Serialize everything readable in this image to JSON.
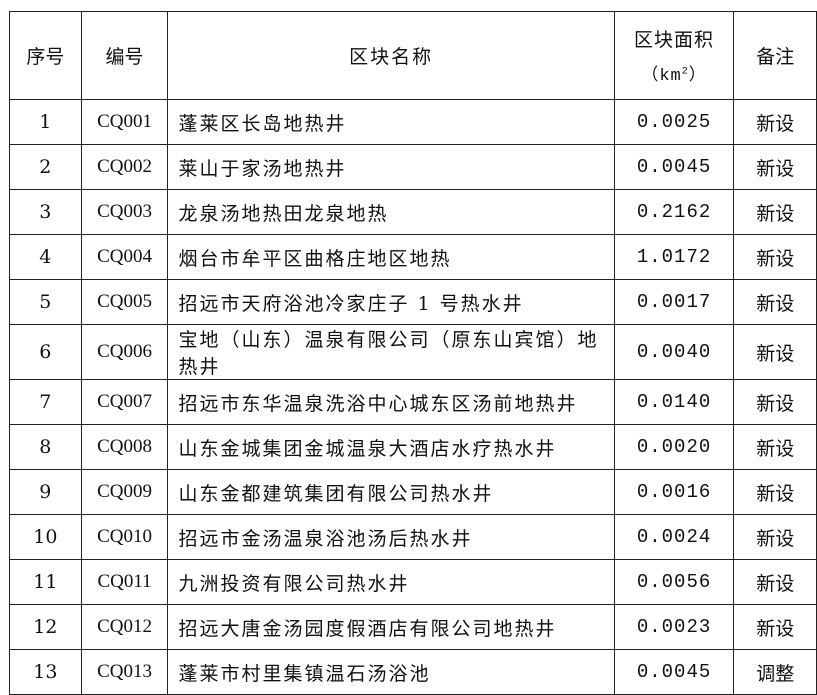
{
  "headers": {
    "seq": "序号",
    "code": "编号",
    "name": "区块名称",
    "area": "区块面积",
    "area_unit_prefix": "（km",
    "area_unit_sup": "2",
    "area_unit_suffix": "）",
    "note": "备注"
  },
  "rows": [
    {
      "seq": "1",
      "code": "CQ001",
      "name": "蓬莱区长岛地热井",
      "area": "0.0025",
      "note": "新设"
    },
    {
      "seq": "2",
      "code": "CQ002",
      "name": "莱山于家汤地热井",
      "area": "0.0045",
      "note": "新设"
    },
    {
      "seq": "3",
      "code": "CQ003",
      "name": "龙泉汤地热田龙泉地热",
      "area": "0.2162",
      "note": "新设"
    },
    {
      "seq": "4",
      "code": "CQ004",
      "name": "烟台市牟平区曲格庄地区地热",
      "area": "1.0172",
      "note": "新设"
    },
    {
      "seq": "5",
      "code": "CQ005",
      "name": "招远市天府浴池冷家庄子 1 号热水井",
      "area": "0.0017",
      "note": "新设"
    },
    {
      "seq": "6",
      "code": "CQ006",
      "name": "宝地（山东）温泉有限公司（原东山宾馆）地热井",
      "area": "0.0040",
      "note": "新设"
    },
    {
      "seq": "7",
      "code": "CQ007",
      "name": "招远市东华温泉洗浴中心城东区汤前地热井",
      "area": "0.0140",
      "note": "新设"
    },
    {
      "seq": "8",
      "code": "CQ008",
      "name": "山东金城集团金城温泉大酒店水疗热水井",
      "area": "0.0020",
      "note": "新设"
    },
    {
      "seq": "9",
      "code": "CQ009",
      "name": "山东金都建筑集团有限公司热水井",
      "area": "0.0016",
      "note": "新设"
    },
    {
      "seq": "10",
      "code": "CQ010",
      "name": "招远市金汤温泉浴池汤后热水井",
      "area": "0.0024",
      "note": "新设"
    },
    {
      "seq": "11",
      "code": "CQ011",
      "name": "九洲投资有限公司热水井",
      "area": "0.0056",
      "note": "新设"
    },
    {
      "seq": "12",
      "code": "CQ012",
      "name": "招远大唐金汤园度假酒店有限公司地热井",
      "area": "0.0023",
      "note": "新设"
    },
    {
      "seq": "13",
      "code": "CQ013",
      "name": "蓬莱市村里集镇温石汤浴池",
      "area": "0.0045",
      "note": "调整"
    }
  ]
}
